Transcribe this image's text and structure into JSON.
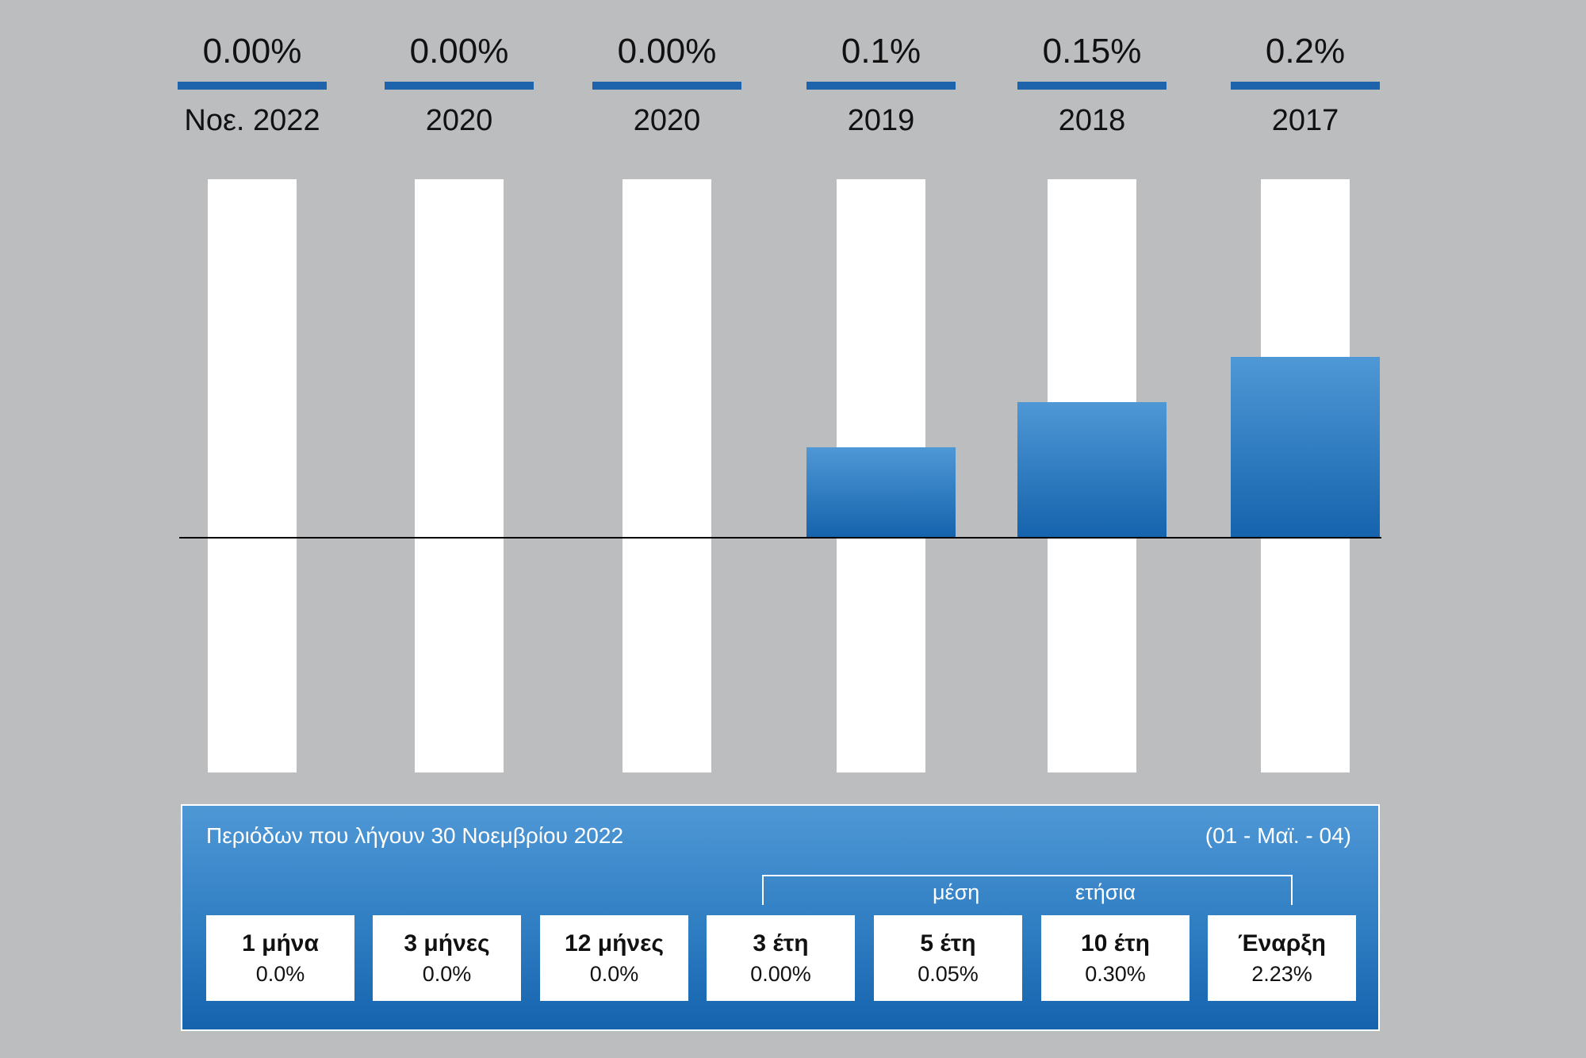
{
  "chart_data": {
    "type": "bar",
    "categories": [
      "Νοε. 2022",
      "2020",
      "2020",
      "2019",
      "2018",
      "2017"
    ],
    "values": [
      0.0,
      0.0,
      0.0,
      0.1,
      0.15,
      0.2
    ],
    "value_labels": [
      "0.00%",
      "0.00%",
      "0.00%",
      "0.1%",
      "0.15%",
      "0.2%"
    ],
    "title": "",
    "xlabel": "",
    "ylabel": "",
    "grid": false
  },
  "summary": {
    "title": "Περιόδων που λήγουν 30 Νοεμβρίου 2022",
    "range": "(01 - Μαϊ. - 04)",
    "avg_label_1": "μέση",
    "avg_label_2": "ετήσια",
    "cells": [
      {
        "head": "1 μήνα",
        "value": "0.0%"
      },
      {
        "head": "3 μήνες",
        "value": "0.0%"
      },
      {
        "head": "12 μήνες",
        "value": "0.0%"
      },
      {
        "head": "3 έτη",
        "value": "0.00%"
      },
      {
        "head": "5 έτη",
        "value": "0.05%"
      },
      {
        "head": "10 έτη",
        "value": "0.30%"
      },
      {
        "head": "Έναρξη",
        "value": "2.23%"
      }
    ]
  },
  "colors": {
    "background": "#bcbdbf",
    "bar_top": "#4f98d6",
    "bar_bottom": "#1563ad",
    "underline": "#1d64ad",
    "track": "#ffffff"
  }
}
